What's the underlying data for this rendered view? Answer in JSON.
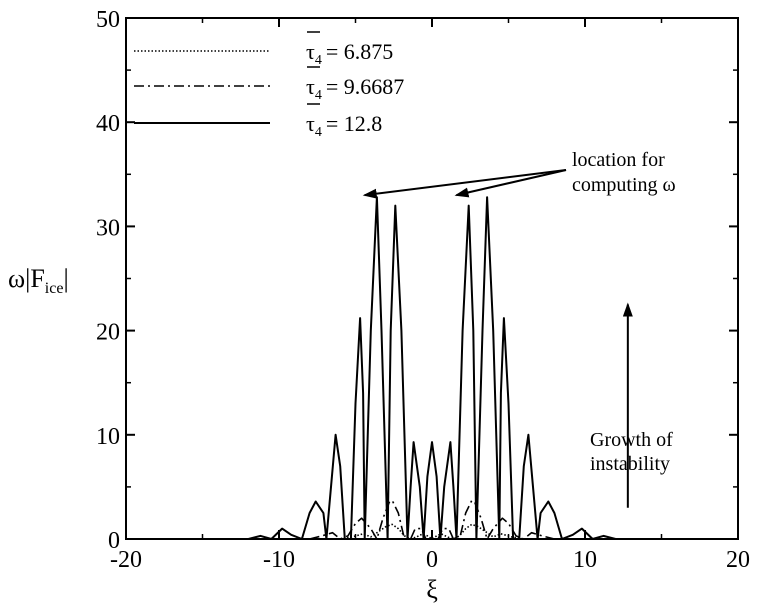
{
  "chart_data": {
    "type": "line",
    "xlim": [
      -20,
      20
    ],
    "ylim": [
      0,
      50
    ],
    "xticks": [
      -20,
      -10,
      0,
      10,
      20
    ],
    "yticks": [
      0,
      10,
      20,
      30,
      40,
      50
    ],
    "xlabel": "ξ",
    "ylabel": {
      "prefix": "ω|F",
      "sub": "ice",
      "suffix": "|"
    },
    "grid": false,
    "legend": {
      "position": "top-left",
      "entries": [
        {
          "symbol": "τ",
          "sub": "4",
          "text": "= 6.875",
          "style": "dotted"
        },
        {
          "symbol": "τ",
          "sub": "4",
          "text": "= 9.6687",
          "style": "dashdot"
        },
        {
          "symbol": "τ",
          "sub": "4",
          "text": "= 12.8",
          "style": "solid"
        }
      ]
    },
    "series": [
      {
        "name": "τ4 = 12.8",
        "style": "solid",
        "x": [
          -12,
          -11.2,
          -10.5,
          -9.8,
          -9.2,
          -8.5,
          -8.0,
          -7.6,
          -7.1,
          -6.9,
          -6.6,
          -6.3,
          -6.0,
          -5.7,
          -5.5,
          -5.3,
          -5.0,
          -4.7,
          -4.5,
          -4.4,
          -4.0,
          -3.6,
          -3.3,
          -2.9,
          -2.7,
          -2.4,
          -2.0,
          -1.6,
          -1.4,
          -1.2,
          -0.8,
          -0.55,
          -0.3,
          0,
          0.3,
          0.55,
          0.8,
          1.2,
          1.4,
          1.6,
          2.0,
          2.4,
          2.7,
          2.9,
          3.3,
          3.6,
          4.0,
          4.4,
          4.5,
          4.7,
          5.0,
          5.3,
          5.5,
          5.7,
          6.0,
          6.3,
          6.6,
          6.9,
          7.1,
          7.6,
          8.0,
          8.5,
          9.2,
          9.8,
          10.5,
          11.2,
          12
        ],
        "y": [
          0,
          0.3,
          0,
          1.0,
          0.4,
          0,
          2.5,
          3.6,
          2.5,
          0,
          5.0,
          10.0,
          7.0,
          0,
          0,
          0,
          13.0,
          21.2,
          14.0,
          0,
          20.0,
          32.8,
          20.0,
          0,
          20.0,
          32.0,
          20.0,
          0,
          5.0,
          9.3,
          5.0,
          0,
          6.0,
          9.3,
          6.0,
          0,
          5.0,
          9.3,
          5.0,
          0,
          20.0,
          32.0,
          20.0,
          0,
          20.0,
          32.8,
          20.0,
          0,
          14.0,
          21.2,
          13.0,
          0,
          0,
          0,
          7.0,
          10.0,
          5.0,
          0,
          2.5,
          3.6,
          2.5,
          0,
          0.4,
          1.0,
          0,
          0.3,
          0
        ]
      },
      {
        "name": "τ4 = 9.6687",
        "style": "dashdot",
        "x": [
          -8,
          -7.2,
          -6.5,
          -6.0,
          -5.5,
          -5.0,
          -4.6,
          -4.0,
          -3.6,
          -3.2,
          -2.8,
          -2.6,
          -2.2,
          -1.8,
          -1.4,
          -1.1,
          -0.7,
          -0.4,
          0,
          0.4,
          0.7,
          1.1,
          1.4,
          1.8,
          2.2,
          2.6,
          2.8,
          3.2,
          3.6,
          4.0,
          4.6,
          5.0,
          5.5,
          6.0,
          6.5,
          7.2,
          8
        ],
        "y": [
          0,
          0.3,
          0.6,
          0,
          0.3,
          1.5,
          2.0,
          1.0,
          0,
          2.0,
          3.5,
          3.7,
          2.5,
          0,
          0,
          1.0,
          1.0,
          0,
          0,
          0,
          1.0,
          1.0,
          0,
          0,
          2.5,
          3.7,
          3.5,
          2.0,
          0,
          1.0,
          2.0,
          1.5,
          0.3,
          0,
          0.6,
          0.3,
          0
        ]
      },
      {
        "name": "τ4 = 6.875",
        "style": "dotted",
        "x": [
          -6,
          -5.2,
          -4.5,
          -4.0,
          -3.5,
          -3.0,
          -2.6,
          -2.2,
          -1.8,
          -1.4,
          -1.0,
          -0.6,
          -0.3,
          0,
          0.3,
          0.6,
          1.0,
          1.4,
          1.8,
          2.2,
          2.6,
          3.0,
          3.5,
          4.0,
          4.5,
          5.2,
          6
        ],
        "y": [
          0,
          0.2,
          0.5,
          0.2,
          0.7,
          1.2,
          1.4,
          1.0,
          0.3,
          0,
          0.2,
          0.5,
          0.3,
          0,
          0.3,
          0.5,
          0.2,
          0,
          0.3,
          1.0,
          1.4,
          1.2,
          0.7,
          0.2,
          0.5,
          0.2,
          0
        ]
      }
    ],
    "annotations": [
      {
        "lines": [
          "location for",
          "computing ω"
        ],
        "arrows_to": [
          [
            -4.4,
            33.0
          ],
          [
            1.6,
            33.0
          ]
        ]
      },
      {
        "lines": [
          "Growth of",
          "instability"
        ],
        "arrow": {
          "x": 12.8,
          "y_from": 3,
          "y_to": 22.5
        }
      }
    ]
  }
}
